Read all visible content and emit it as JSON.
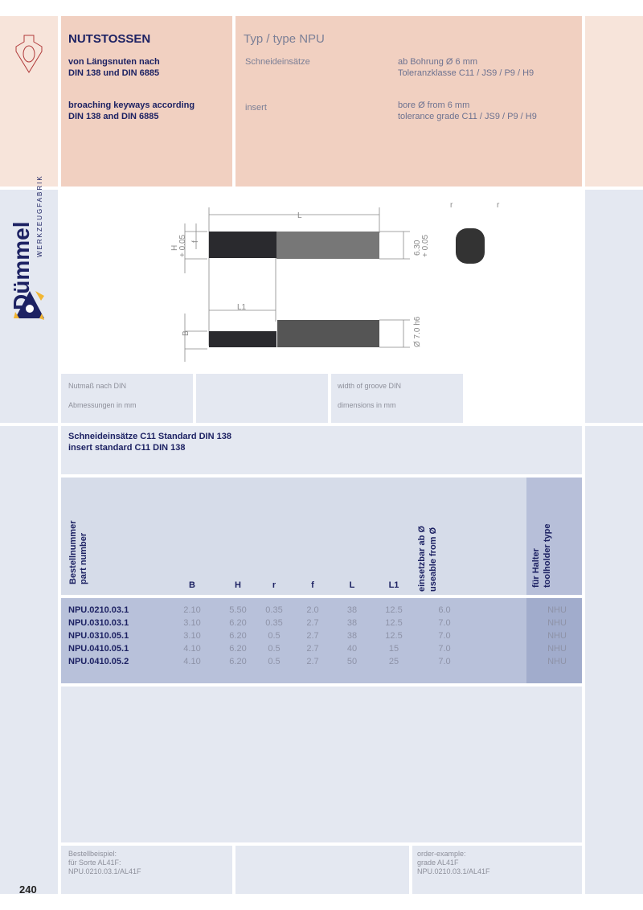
{
  "header": {
    "title": "NUTSTOSSEN",
    "desc_de": [
      "von Längsnuten nach",
      "DIN 138 und DIN 6885"
    ],
    "desc_en": [
      "broaching keyways according",
      "DIN 138 and DIN 6885"
    ],
    "type": "Typ / type NPU",
    "label_de": "Schneideinsätze",
    "label_en": "insert",
    "spec_de": [
      "ab Bohrung Ø 6 mm",
      "Toleranzklasse C11 / JS9 / P9 / H9"
    ],
    "spec_en": [
      "bore Ø from 6 mm",
      "tolerance grade C11 / JS9 / P9 / H9"
    ]
  },
  "logo": {
    "brand": "Dümmel",
    "sub": "WERKZEUGFABRIK",
    "colors": {
      "navy": "#1d2263",
      "gold": "#f2b632"
    }
  },
  "drawing": {
    "labels": {
      "L": "L",
      "L1": "L1",
      "H": "H",
      "H_tol": "+ 0.05",
      "f": "f",
      "B": "B",
      "d1": "6.30",
      "d1_tol": "+ 0.05",
      "d2": "Ø 7.0 h6",
      "r": "r"
    }
  },
  "info": {
    "de1": "Nutmaß nach DIN",
    "de2": "Abmessungen in mm",
    "en1": "width of groove DIN",
    "en2": "dimensions in mm"
  },
  "section": {
    "title_de": "Schneideinsätze C11 Standard DIN 138",
    "title_en": "insert standard C11 DIN 138"
  },
  "table": {
    "headers": {
      "part_de": "Bestellnummer",
      "part_en": "part number",
      "B": "B",
      "H": "H",
      "r": "r",
      "f": "f",
      "L": "L",
      "L1": "L1",
      "use_de": "einsetzbar ab Ø",
      "use_en": "useable from Ø",
      "holder_de": "für Halter",
      "holder_en": "toolholder type"
    },
    "rows": [
      {
        "part": "NPU.0210.03.1",
        "B": "2.10",
        "H": "5.50",
        "r": "0.35",
        "f": "2.0",
        "L": "38",
        "L1": "12.5",
        "use": "6.0",
        "holder": "NHU"
      },
      {
        "part": "NPU.0310.03.1",
        "B": "3.10",
        "H": "6.20",
        "r": "0.35",
        "f": "2.7",
        "L": "38",
        "L1": "12.5",
        "use": "7.0",
        "holder": "NHU"
      },
      {
        "part": "NPU.0310.05.1",
        "B": "3.10",
        "H": "6.20",
        "r": "0.5",
        "f": "2.7",
        "L": "38",
        "L1": "12.5",
        "use": "7.0",
        "holder": "NHU"
      },
      {
        "part": "NPU.0410.05.1",
        "B": "4.10",
        "H": "6.20",
        "r": "0.5",
        "f": "2.7",
        "L": "40",
        "L1": "15",
        "use": "7.0",
        "holder": "NHU"
      },
      {
        "part": "NPU.0410.05.2",
        "B": "4.10",
        "H": "6.20",
        "r": "0.5",
        "f": "2.7",
        "L": "50",
        "L1": "25",
        "use": "7.0",
        "holder": "NHU"
      }
    ]
  },
  "footer": {
    "de": [
      "Bestellbeispiel:",
      "für Sorte AL41F:",
      "NPU.0210.03.1/AL41F"
    ],
    "en": [
      "order-example:",
      "grade AL41F",
      "NPU.0210.03.1/AL41F"
    ]
  },
  "page_number": "240"
}
